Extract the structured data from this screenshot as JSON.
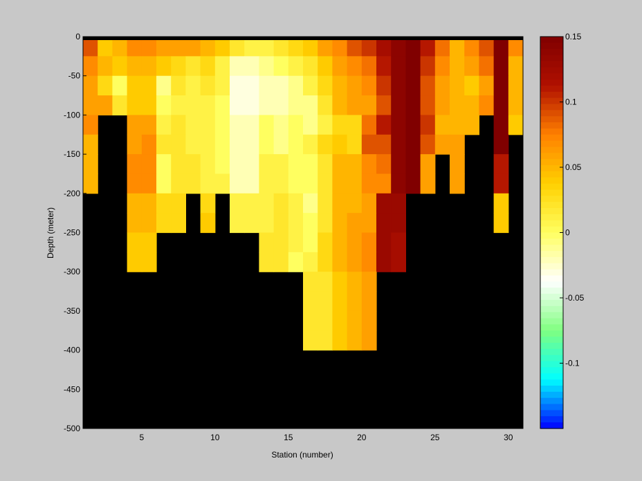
{
  "chart_data": {
    "type": "heatmap",
    "title": "",
    "xlabel": "Station (number)",
    "ylabel": "Depth (meter)",
    "xlim": [
      1,
      31
    ],
    "ylim": [
      -500,
      0
    ],
    "xticks": [
      5,
      10,
      15,
      20,
      25,
      30
    ],
    "yticks": [
      0,
      -50,
      -100,
      -150,
      -200,
      -250,
      -300,
      -350,
      -400,
      -450,
      -500
    ],
    "stations": [
      1,
      2,
      3,
      4,
      5,
      6,
      7,
      8,
      9,
      10,
      11,
      12,
      13,
      14,
      15,
      16,
      17,
      18,
      19,
      20,
      21,
      22,
      23,
      24,
      25,
      26,
      27,
      28,
      29,
      30
    ],
    "depth_levels": [
      -12.5,
      -37.5,
      -62.5,
      -87.5,
      -112.5,
      -137.5,
      -162.5,
      -187.5,
      -212.5,
      -237.5,
      -262.5,
      -287.5,
      -312.5,
      -337.5,
      -362.5,
      -387.5
    ],
    "values": [
      [
        0.09,
        0.04,
        0.05,
        0.07,
        0.07,
        0.06,
        0.06,
        0.06,
        0.05,
        0.04,
        0.02,
        0.01,
        0.01,
        0.02,
        0.03,
        0.04,
        0.06,
        0.07,
        0.09,
        0.1,
        0.12,
        0.14,
        0.15,
        0.11,
        0.08,
        0.05,
        0.07,
        0.09,
        0.15,
        0.07
      ],
      [
        0.07,
        0.05,
        0.04,
        0.05,
        0.05,
        0.04,
        0.03,
        0.02,
        0.03,
        0.01,
        -0.02,
        -0.02,
        -0.01,
        0.0,
        0.01,
        0.02,
        0.04,
        0.06,
        0.07,
        0.08,
        0.11,
        0.14,
        0.15,
        0.1,
        0.07,
        0.05,
        0.06,
        0.08,
        0.15,
        0.05
      ],
      [
        0.06,
        0.03,
        0.0,
        0.04,
        0.04,
        -0.01,
        0.02,
        0.01,
        0.02,
        0.01,
        -0.03,
        -0.03,
        -0.02,
        -0.02,
        -0.01,
        0.01,
        0.03,
        0.05,
        0.06,
        0.07,
        0.1,
        0.14,
        0.15,
        0.09,
        0.06,
        0.05,
        0.04,
        0.06,
        0.15,
        0.05
      ],
      [
        0.06,
        0.06,
        0.02,
        0.04,
        0.04,
        0.0,
        0.01,
        0.01,
        0.01,
        0.0,
        -0.03,
        -0.03,
        -0.02,
        -0.02,
        -0.01,
        -0.01,
        0.02,
        0.05,
        0.06,
        0.06,
        0.09,
        0.14,
        0.15,
        0.09,
        0.06,
        0.05,
        0.05,
        0.07,
        0.15,
        0.05
      ],
      [
        0.07,
        null,
        null,
        0.06,
        0.06,
        0.01,
        0.02,
        0.01,
        0.01,
        0.0,
        -0.02,
        -0.02,
        0.0,
        -0.01,
        0.0,
        -0.01,
        0.01,
        0.03,
        0.03,
        0.08,
        0.11,
        0.14,
        0.15,
        0.1,
        0.05,
        0.05,
        0.05,
        null,
        0.15,
        0.04
      ],
      [
        0.05,
        null,
        null,
        0.06,
        0.07,
        0.02,
        0.02,
        0.01,
        0.01,
        0.0,
        -0.02,
        -0.02,
        0.0,
        -0.01,
        0.0,
        0.01,
        0.03,
        0.04,
        0.03,
        0.09,
        0.09,
        0.14,
        0.15,
        0.09,
        0.06,
        0.06,
        null,
        null,
        0.15,
        null
      ],
      [
        0.05,
        null,
        null,
        0.07,
        0.07,
        0.0,
        0.02,
        0.02,
        0.01,
        0.0,
        -0.02,
        -0.02,
        0.01,
        0.01,
        0.0,
        0.0,
        0.02,
        0.05,
        0.05,
        0.07,
        0.08,
        0.14,
        0.15,
        0.06,
        null,
        0.06,
        null,
        null,
        0.11,
        null
      ],
      [
        0.05,
        null,
        null,
        0.07,
        0.07,
        0.0,
        0.02,
        0.02,
        0.01,
        0.01,
        -0.02,
        -0.02,
        0.01,
        0.01,
        0.0,
        0.0,
        0.02,
        0.05,
        0.05,
        0.07,
        0.07,
        0.14,
        0.15,
        0.06,
        null,
        0.06,
        null,
        null,
        0.11,
        null
      ],
      [
        null,
        null,
        null,
        0.05,
        0.05,
        0.03,
        0.03,
        null,
        0.03,
        null,
        0.01,
        0.01,
        0.01,
        0.02,
        0.01,
        -0.01,
        0.02,
        0.05,
        0.05,
        0.06,
        0.13,
        0.13,
        null,
        null,
        null,
        null,
        null,
        null,
        0.04,
        null
      ],
      [
        null,
        null,
        null,
        0.05,
        0.05,
        0.03,
        0.03,
        null,
        0.04,
        null,
        0.01,
        0.01,
        0.01,
        0.02,
        0.01,
        0.0,
        0.02,
        0.05,
        0.06,
        0.06,
        0.13,
        0.13,
        null,
        null,
        null,
        null,
        null,
        null,
        0.04,
        null
      ],
      [
        null,
        null,
        null,
        0.04,
        0.04,
        null,
        null,
        null,
        null,
        null,
        null,
        null,
        0.02,
        0.02,
        0.01,
        0.0,
        0.03,
        0.05,
        0.06,
        0.07,
        0.13,
        0.12,
        null,
        null,
        null,
        null,
        null,
        null,
        null,
        null
      ],
      [
        null,
        null,
        null,
        0.04,
        0.04,
        null,
        null,
        null,
        null,
        null,
        null,
        null,
        0.02,
        0.02,
        0.0,
        0.01,
        0.03,
        0.05,
        0.06,
        0.07,
        0.13,
        0.12,
        null,
        null,
        null,
        null,
        null,
        null,
        null,
        null
      ],
      [
        null,
        null,
        null,
        null,
        null,
        null,
        null,
        null,
        null,
        null,
        null,
        null,
        null,
        null,
        null,
        0.02,
        0.02,
        0.04,
        0.05,
        0.06,
        null,
        null,
        null,
        null,
        null,
        null,
        null,
        null,
        null,
        null
      ],
      [
        null,
        null,
        null,
        null,
        null,
        null,
        null,
        null,
        null,
        null,
        null,
        null,
        null,
        null,
        null,
        0.02,
        0.02,
        0.04,
        0.05,
        0.06,
        null,
        null,
        null,
        null,
        null,
        null,
        null,
        null,
        null,
        null
      ],
      [
        null,
        null,
        null,
        null,
        null,
        null,
        null,
        null,
        null,
        null,
        null,
        null,
        null,
        null,
        null,
        0.02,
        0.02,
        0.04,
        0.05,
        0.06,
        null,
        null,
        null,
        null,
        null,
        null,
        null,
        null,
        null,
        null
      ],
      [
        null,
        null,
        null,
        null,
        null,
        null,
        null,
        null,
        null,
        null,
        null,
        null,
        null,
        null,
        null,
        0.02,
        0.02,
        0.04,
        0.05,
        0.06,
        null,
        null,
        null,
        null,
        null,
        null,
        null,
        null,
        null,
        null
      ]
    ],
    "mask_color": "#000000",
    "colorbar": {
      "clim": [
        -0.15,
        0.15
      ],
      "ticks": [
        0.15,
        0.1,
        0.05,
        0,
        -0.05,
        -0.1
      ],
      "tick_labels": [
        "0.15",
        "0.1",
        "0.05",
        "0",
        "-0.05",
        "-0.1"
      ],
      "colors": [
        "#0000ff",
        "#00ffff",
        "#80ff80",
        "#ffffff",
        "#ffff60",
        "#ffd000",
        "#ff8000",
        "#b01000",
        "#800000"
      ]
    },
    "grid": false,
    "legend": "none"
  }
}
